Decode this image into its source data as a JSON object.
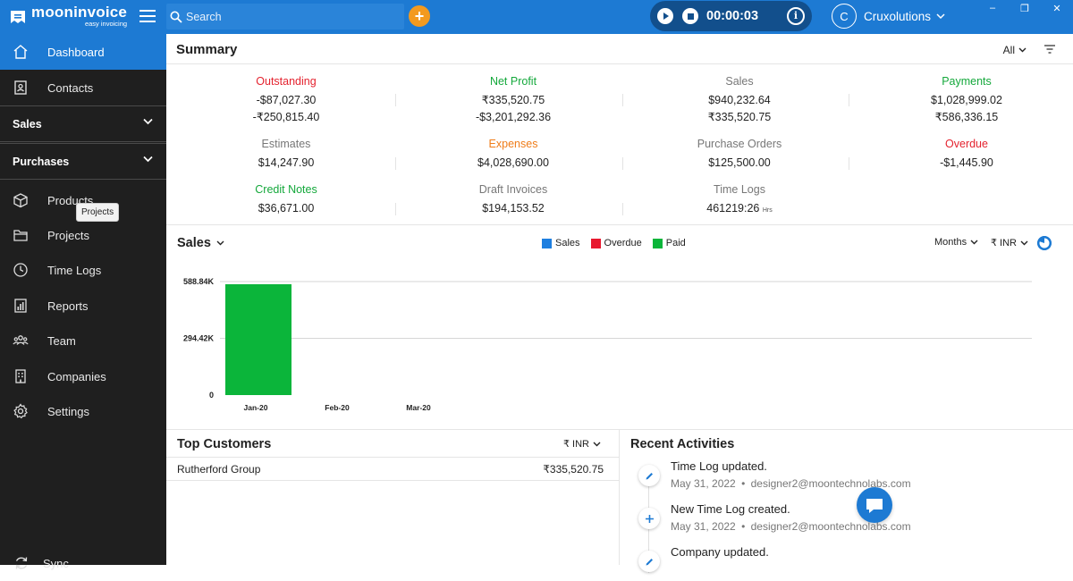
{
  "app": {
    "logo_name": "mooninvoice",
    "logo_tag": "easy invoicing"
  },
  "topbar": {
    "search_placeholder": "Search",
    "add_label": "+",
    "timer": "00:00:03",
    "info_label": "i",
    "user_initial": "C",
    "user_name": "Cruxolutions",
    "minimize": "‒",
    "maximize": "❐",
    "close": "✕"
  },
  "sidebar": {
    "items": [
      {
        "label": "Dashboard",
        "icon": "home-icon"
      },
      {
        "label": "Contacts",
        "icon": "contacts-icon"
      },
      {
        "label": "Sales",
        "icon": "chevron-down-icon"
      },
      {
        "label": "Purchases",
        "icon": "chevron-down-icon"
      },
      {
        "label": "Products",
        "icon": "box-icon"
      },
      {
        "label": "Projects",
        "icon": "folder-icon"
      },
      {
        "label": "Time Logs",
        "icon": "clock-icon"
      },
      {
        "label": "Reports",
        "icon": "report-icon"
      },
      {
        "label": "Team",
        "icon": "team-icon"
      },
      {
        "label": "Companies",
        "icon": "building-icon"
      },
      {
        "label": "Settings",
        "icon": "gear-icon"
      }
    ],
    "tooltip": "Projects",
    "sync": "Sync"
  },
  "summary": {
    "title": "Summary",
    "filter": "All",
    "kpis": [
      {
        "label": "Outstanding",
        "color": "#e4232f",
        "values": [
          "-$87,027.30",
          "-₹250,815.40"
        ]
      },
      {
        "label": "Net Profit",
        "color": "#14a83b",
        "values": [
          "₹335,520.75",
          "-$3,201,292.36"
        ]
      },
      {
        "label": "Sales",
        "color": "#777777",
        "values": [
          "$940,232.64",
          "₹335,520.75"
        ]
      },
      {
        "label": "Payments",
        "color": "#14a83b",
        "values": [
          "$1,028,999.02",
          "₹586,336.15"
        ]
      },
      {
        "label": "Estimates",
        "color": "#777777",
        "values": [
          "$14,247.90"
        ]
      },
      {
        "label": "Expenses",
        "color": "#ef7d1a",
        "values": [
          "$4,028,690.00"
        ]
      },
      {
        "label": "Purchase Orders",
        "color": "#777777",
        "values": [
          "$125,500.00"
        ]
      },
      {
        "label": "Overdue",
        "color": "#e4232f",
        "values": [
          "-$1,445.90"
        ]
      },
      {
        "label": "Credit Notes",
        "color": "#14a83b",
        "values": [
          "$36,671.00"
        ]
      },
      {
        "label": "Draft Invoices",
        "color": "#777777",
        "values": [
          "$194,153.52"
        ]
      },
      {
        "label": "Time Logs",
        "color": "#777777",
        "values": [
          "461219:26"
        ],
        "unit": "Hrs"
      }
    ]
  },
  "sales_chart": {
    "title": "Sales",
    "period": "Months",
    "currency": "₹ INR",
    "legend": [
      {
        "name": "Sales",
        "color": "#1e7fe0"
      },
      {
        "name": "Overdue",
        "color": "#e8182f"
      },
      {
        "name": "Paid",
        "color": "#0bb53a"
      }
    ]
  },
  "chart_data": {
    "type": "bar",
    "categories": [
      "Jan-20",
      "Feb-20",
      "Mar-20"
    ],
    "series": [
      {
        "name": "Sales",
        "values": [
          0,
          0,
          0
        ]
      },
      {
        "name": "Overdue",
        "values": [
          0,
          0,
          0
        ]
      },
      {
        "name": "Paid",
        "values": [
          575000,
          0,
          0
        ]
      }
    ],
    "yticks": [
      "0",
      "294.42K",
      "588.84K"
    ],
    "ylim": [
      0,
      588840
    ],
    "grid": true,
    "legend_position": "top-center"
  },
  "customers": {
    "title": "Top Customers",
    "currency": "₹ INR",
    "rows": [
      {
        "name": "Rutherford Group",
        "amount": "₹335,520.75"
      }
    ]
  },
  "activities": {
    "title": "Recent Activities",
    "items": [
      {
        "title": "Time Log updated.",
        "date": "May 31, 2022",
        "user": "designer2@moontechnolabs.com",
        "icon": "edit-icon"
      },
      {
        "title": "New Time Log created.",
        "date": "May 31, 2022",
        "user": "designer2@moontechnolabs.com",
        "icon": "plus-icon"
      },
      {
        "title": "Company updated.",
        "date": "",
        "user": "",
        "icon": "edit-icon"
      }
    ],
    "sep": "•"
  }
}
